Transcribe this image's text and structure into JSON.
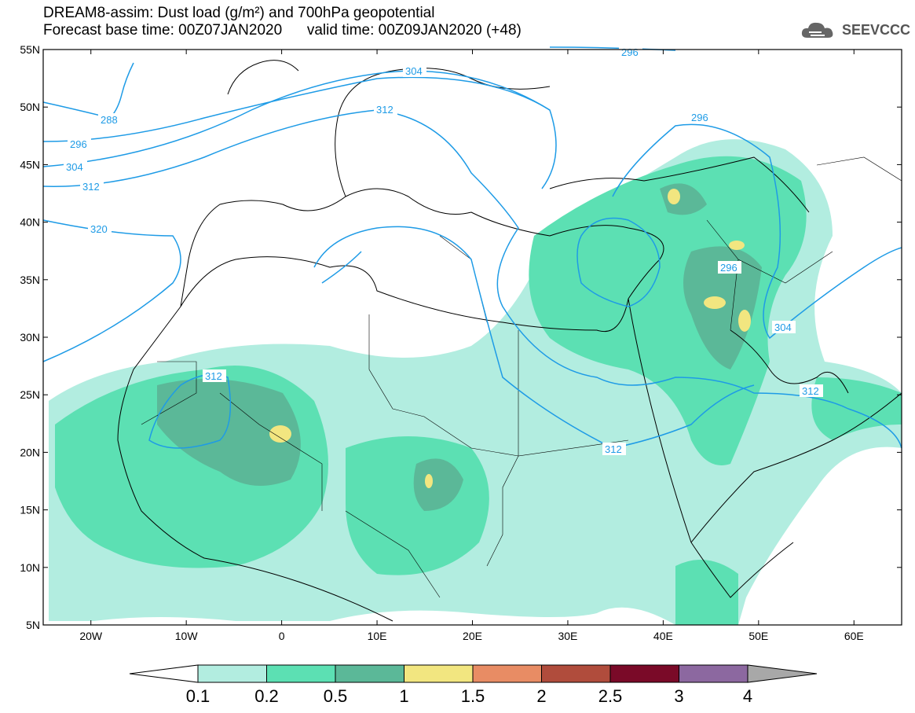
{
  "title": {
    "line1": "DREAM8-assim: Dust load (g/m²) and 700hPa geopotential",
    "line2_left": "Forecast base time: 00Z07JAN2020",
    "line2_right": "valid time: 00Z09JAN2020 (+48)"
  },
  "logo": {
    "text": "SEEVCCC",
    "icon": "cloud-icon",
    "color": "#666666"
  },
  "map": {
    "lon_range": [
      -25,
      65
    ],
    "lat_range": [
      5,
      55
    ],
    "lat_ticks": [
      "55N",
      "50N",
      "45N",
      "40N",
      "35N",
      "30N",
      "25N",
      "20N",
      "15N",
      "10N",
      "5N"
    ],
    "lon_ticks": [
      "20W",
      "10W",
      "0",
      "10E",
      "20E",
      "30E",
      "40E",
      "50E",
      "60E"
    ],
    "contour_color": "#1e9be6",
    "contour_labels": [
      "296",
      "304",
      "312",
      "288",
      "296",
      "304",
      "312",
      "320",
      "312",
      "296",
      "296",
      "304",
      "312",
      "312"
    ]
  },
  "colorbar": {
    "labels": [
      "0.1",
      "0.2",
      "0.5",
      "1",
      "1.5",
      "2",
      "2.5",
      "3",
      "4"
    ],
    "colors": [
      "#b2ede0",
      "#5ce0b3",
      "#5bb898",
      "#f2e680",
      "#e88c64",
      "#b04c3c",
      "#7a0a28",
      "#8c68a0",
      "#a8a8a8"
    ]
  }
}
